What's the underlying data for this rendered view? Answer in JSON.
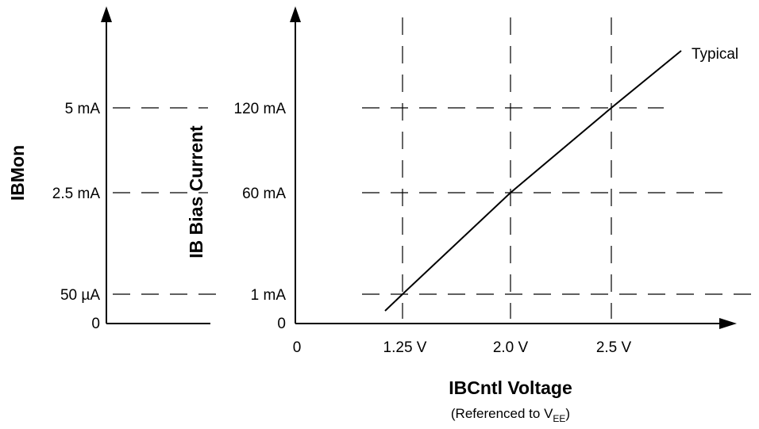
{
  "chart_data": [
    {
      "type": "line",
      "panel": "IBMon",
      "ylabel": "IBMon",
      "yticks": [
        {
          "label": "0"
        },
        {
          "label": "50 µA"
        },
        {
          "label": "2.5 mA"
        },
        {
          "label": "5 mA"
        }
      ]
    },
    {
      "type": "line",
      "panel": "IB Bias Current",
      "ylabel": "IB Bias Current",
      "xlabel": "IBCntl Voltage",
      "xlabel_note_prefix": "(Referenced to V",
      "xlabel_note_sub": "EE",
      "xlabel_note_suffix": ")",
      "xticks": [
        {
          "label": "0",
          "value": 0
        },
        {
          "label": "1.25 V",
          "value": 1.25
        },
        {
          "label": "2.0 V",
          "value": 2.0
        },
        {
          "label": "2.5 V",
          "value": 2.5
        }
      ],
      "yticks": [
        {
          "label": "0",
          "value": 0
        },
        {
          "label": "1 mA",
          "value": 1
        },
        {
          "label": "60 mA",
          "value": 60
        },
        {
          "label": "120 mA",
          "value": 120
        }
      ],
      "series": [
        {
          "name": "Typical",
          "x": [
            1.1,
            1.25,
            2.0,
            2.5,
            2.85
          ],
          "y": [
            -10,
            1,
            60,
            120,
            160
          ]
        }
      ]
    }
  ]
}
